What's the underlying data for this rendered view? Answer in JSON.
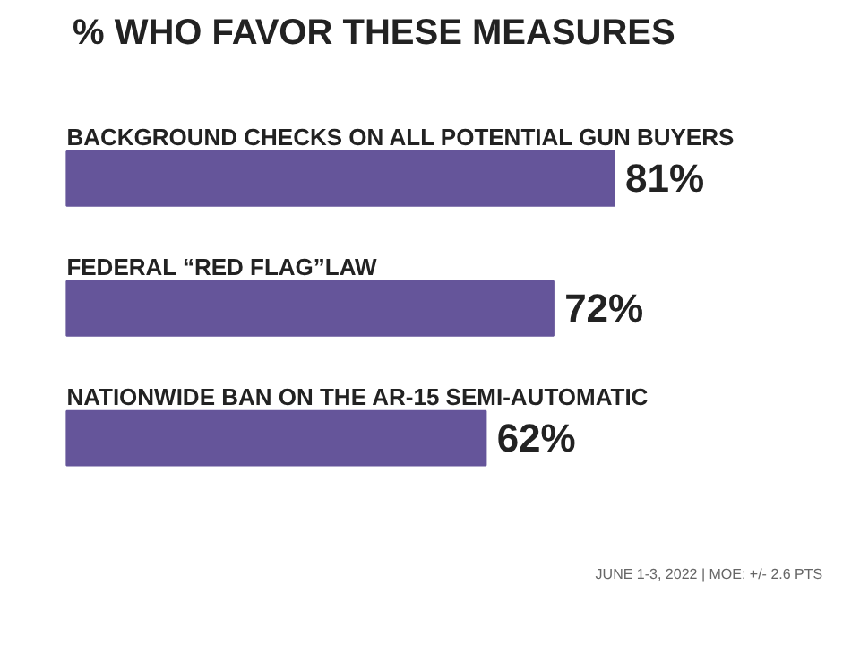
{
  "chart_data": {
    "type": "bar",
    "orientation": "horizontal",
    "title": "% WHO FAVOR THESE MEASURES",
    "categories": [
      "BACKGROUND CHECKS ON ALL POTENTIAL GUN BUYERS",
      "FEDERAL “RED FLAG”LAW",
      "NATIONWIDE BAN ON THE AR-15 SEMI-AUTOMATIC"
    ],
    "values": [
      81,
      72,
      62
    ],
    "value_labels": [
      "81%",
      "72%",
      "62%"
    ],
    "color": "#65559a",
    "annotations": [
      "JUNE 1-3, 2022 | MOE: +/- 2.6 PTS"
    ]
  }
}
